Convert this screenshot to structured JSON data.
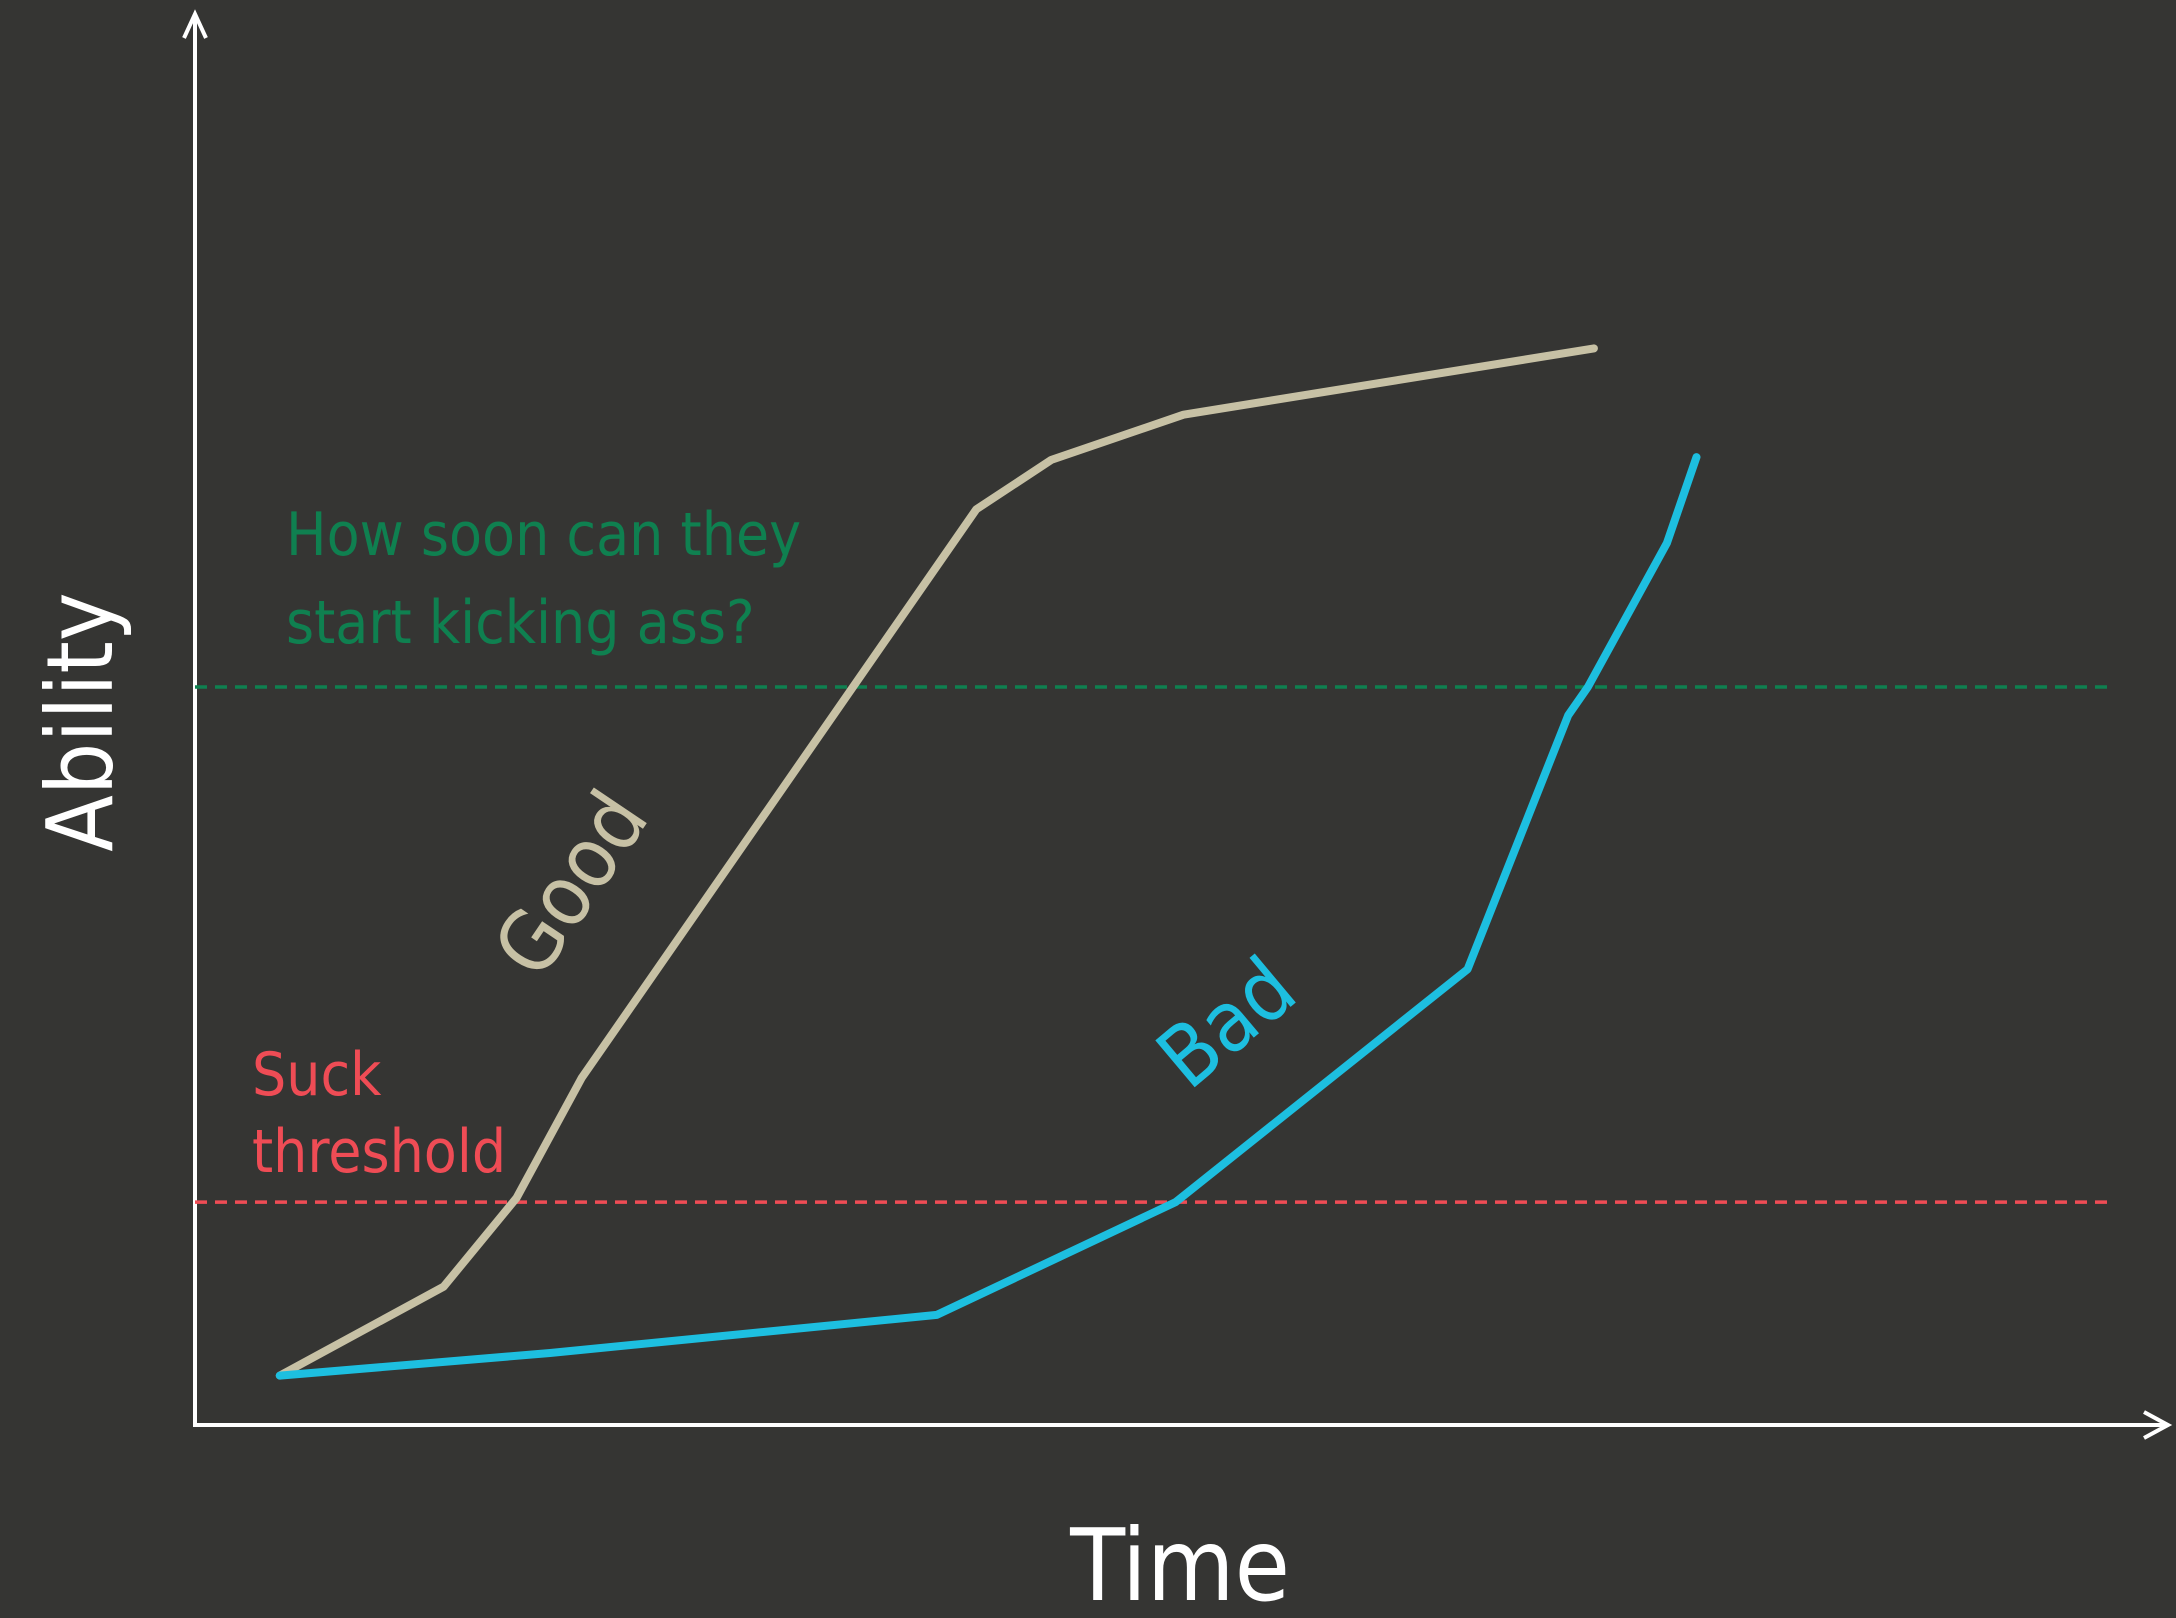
{
  "chart_data": {
    "type": "line",
    "title": "",
    "xlabel": "Time",
    "ylabel": "Ability",
    "xlim": [
      0,
      100
    ],
    "ylim": [
      0,
      100
    ],
    "grid": false,
    "series": [
      {
        "name": "Good",
        "color": "#c7c1a5",
        "points": [
          [
            4.3,
            3.5
          ],
          [
            12.6,
            9.8
          ],
          [
            16.3,
            16.1
          ],
          [
            19.6,
            24.6
          ],
          [
            39.6,
            64.9
          ],
          [
            43.4,
            68.4
          ],
          [
            50.1,
            71.6
          ],
          [
            70.9,
            76.3
          ]
        ]
      },
      {
        "name": "Bad",
        "color": "#1dbfe0",
        "points": [
          [
            4.3,
            3.5
          ],
          [
            18.0,
            5.1
          ],
          [
            37.6,
            7.8
          ],
          [
            49.7,
            15.8
          ],
          [
            64.5,
            32.3
          ],
          [
            69.6,
            50.3
          ],
          [
            70.6,
            52.3
          ],
          [
            74.6,
            62.5
          ],
          [
            76.1,
            68.6
          ]
        ]
      }
    ],
    "thresholds": [
      {
        "name": "kick-ass-threshold",
        "value": 52.3,
        "color": "#0f8050",
        "lines": [
          "How soon can they",
          "start kicking ass?"
        ]
      },
      {
        "name": "suck-threshold",
        "value": 15.8,
        "color": "#ef4c55",
        "lines": [
          "Suck",
          "threshold"
        ]
      }
    ]
  }
}
